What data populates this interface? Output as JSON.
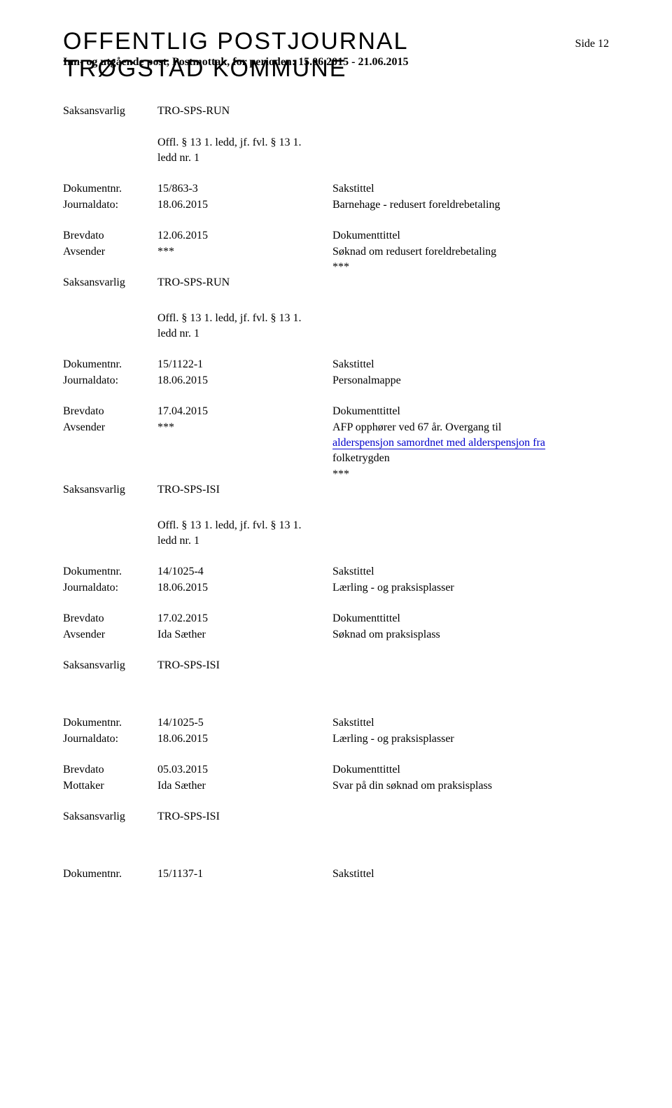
{
  "header": {
    "title_line1": "OFFENTLIG POSTJOURNAL",
    "title_line2": "TRØGSTAD KOMMUNE",
    "page_indicator": "Side 12",
    "subheader": "Inn- og utgående post, Postmottak, for perioden: 15.06.2015 - 21.06.2015"
  },
  "labels": {
    "saksansvarlig": "Saksansvarlig",
    "dokumentnr": "Dokumentnr.",
    "journaldato": "Journaldato:",
    "brevdato": "Brevdato",
    "avsender": "Avsender",
    "mottaker": "Mottaker",
    "sakstittel": "Sakstittel",
    "dokumenttittel": "Dokumenttittel"
  },
  "offl_text": {
    "line1": "Offl. § 13 1. ledd, jf. fvl. § 13 1.",
    "line2": "ledd nr. 1"
  },
  "entries": [
    {
      "top_saksansvarlig": "TRO-SPS-RUN",
      "show_offl_before": true,
      "dokumentnr": "15/863-3",
      "journaldato": "18.06.2015",
      "sakstittel": "Barnehage - redusert foreldrebetaling",
      "brevdato": "12.06.2015",
      "avsender": "***",
      "dokumenttittel": "Søknad om redusert foreldrebetaling",
      "dokumenttittel_extra": "***",
      "saksansvarlig": "TRO-SPS-RUN",
      "show_offl_after": true
    },
    {
      "dokumentnr": "15/1122-1",
      "journaldato": "18.06.2015",
      "sakstittel": "Personalmappe",
      "brevdato": "17.04.2015",
      "avsender": "***",
      "dokumenttittel": "AFP opphører ved 67 år. Overgang til",
      "dokumenttittel_blue": "alderspensjon samordnet med alderspensjon fra",
      "dokumenttittel_line3": "folketrygden",
      "dokumenttittel_extra": "***",
      "saksansvarlig": "TRO-SPS-ISI",
      "show_offl_after": true
    },
    {
      "dokumentnr": "14/1025-4",
      "journaldato": "18.06.2015",
      "sakstittel": "Lærling -  og praksisplasser",
      "brevdato": "17.02.2015",
      "avsender": "Ida Sæther",
      "dokumenttittel": "Søknad om praksisplass",
      "saksansvarlig": "TRO-SPS-ISI"
    },
    {
      "dokumentnr": "14/1025-5",
      "journaldato": "18.06.2015",
      "sakstittel": "Lærling -  og praksisplasser",
      "brevdato": "05.03.2015",
      "mottaker": "Ida Sæther",
      "dokumenttittel": "Svar på din søknad om praksisplass",
      "saksansvarlig": "TRO-SPS-ISI"
    }
  ],
  "footer_entry": {
    "dokumentnr": "15/1137-1"
  }
}
